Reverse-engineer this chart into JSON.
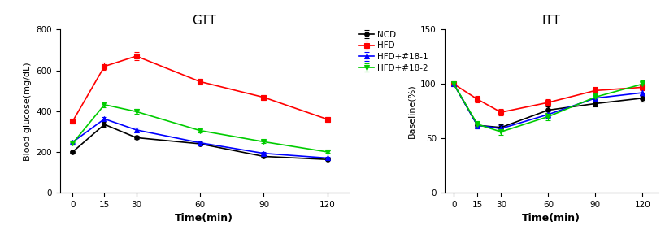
{
  "time": [
    0,
    15,
    30,
    60,
    90,
    120
  ],
  "gtt": {
    "NCD": {
      "y": [
        200,
        335,
        270,
        240,
        178,
        163
      ],
      "yerr": [
        5,
        12,
        8,
        7,
        6,
        5
      ]
    },
    "HFD": {
      "y": [
        350,
        620,
        670,
        545,
        468,
        360
      ],
      "yerr": [
        10,
        18,
        20,
        15,
        12,
        12
      ]
    },
    "HFD+#18-1": {
      "y": [
        248,
        362,
        308,
        245,
        193,
        170
      ],
      "yerr": [
        6,
        10,
        10,
        8,
        6,
        5
      ]
    },
    "HFD+#18-2": {
      "y": [
        242,
        432,
        398,
        305,
        250,
        200
      ],
      "yerr": [
        6,
        12,
        12,
        8,
        8,
        6
      ]
    }
  },
  "itt": {
    "NCD": {
      "y": [
        100,
        62,
        60,
        76,
        82,
        87
      ],
      "yerr": [
        1,
        3,
        3,
        3,
        3,
        3
      ]
    },
    "HFD": {
      "y": [
        100,
        86,
        74,
        83,
        94,
        97
      ],
      "yerr": [
        1,
        3,
        3,
        3,
        3,
        3
      ]
    },
    "HFD+#18-1": {
      "y": [
        100,
        62,
        59,
        72,
        87,
        92
      ],
      "yerr": [
        1,
        3,
        3,
        3,
        3,
        3
      ]
    },
    "HFD+#18-2": {
      "y": [
        100,
        63,
        56,
        70,
        88,
        100
      ],
      "yerr": [
        1,
        3,
        3,
        3,
        3,
        3
      ]
    }
  },
  "colors": {
    "NCD": "#000000",
    "HFD": "#FF0000",
    "HFD+#18-1": "#0000FF",
    "HFD+#18-2": "#00CC00"
  },
  "markers": {
    "NCD": "o",
    "HFD": "s",
    "HFD+#18-1": "^",
    "HFD+#18-2": "v"
  },
  "gtt_title": "GTT",
  "itt_title": "ITT",
  "gtt_ylabel": "Blood glucose(mg/dL)",
  "gtt_xlabel": "Time(min)",
  "itt_ylabel": "Baseline(%)",
  "itt_xlabel": "Time(min)",
  "gtt_ylim": [
    0,
    800
  ],
  "gtt_yticks": [
    0,
    200,
    400,
    600,
    800
  ],
  "itt_ylim": [
    0,
    150
  ],
  "itt_yticks": [
    0,
    50,
    100,
    150
  ],
  "legend_labels": [
    "NCD",
    "HFD",
    "HFD+#18-1",
    "HFD+#18-2"
  ]
}
